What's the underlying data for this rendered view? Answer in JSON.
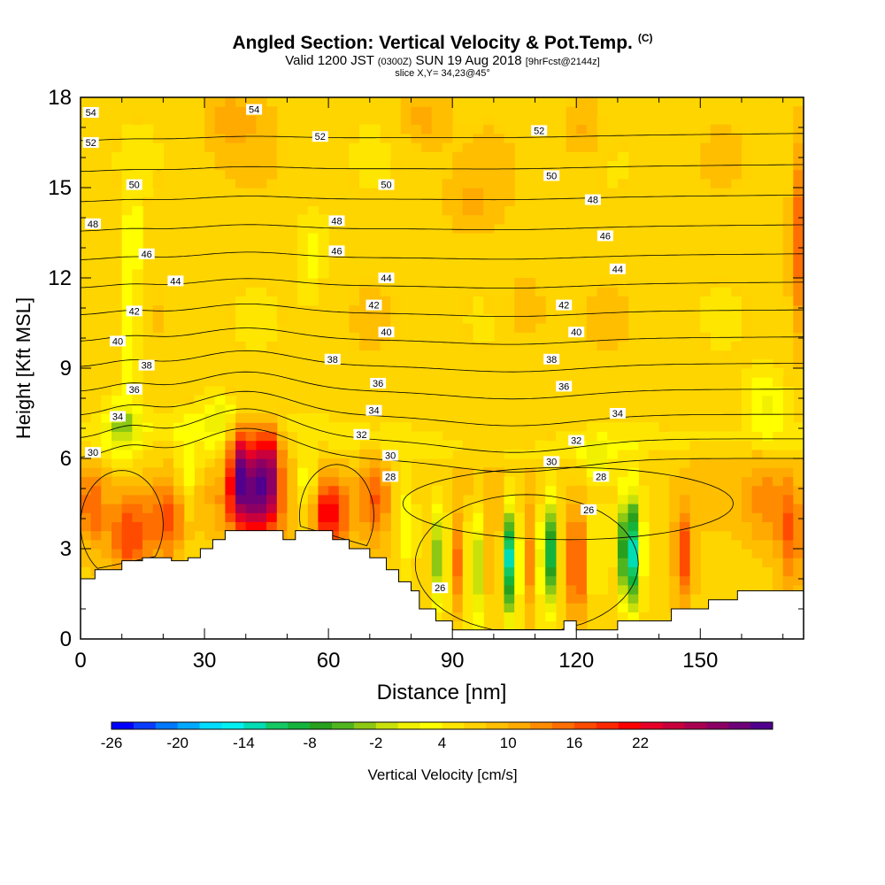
{
  "title": {
    "main": "Angled Section: Vertical Velocity & Pot.Temp.",
    "mark": "(C)",
    "valid_prefix": "Valid 1200 JST",
    "valid_utc": "(0300Z)",
    "valid_date": "SUN 19 Aug 2018",
    "forecast": "[9hrFcst@2144z]",
    "slice": "slice X,Y= 34,23@45°"
  },
  "chart_data": {
    "type": "heatmap",
    "xlabel": "Distance [nm]",
    "ylabel": "Height [Kft MSL]",
    "xlim": [
      0,
      175
    ],
    "ylim": [
      0,
      18
    ],
    "x_ticks": [
      0,
      30,
      60,
      90,
      120,
      150
    ],
    "y_ticks": [
      0,
      3,
      6,
      9,
      12,
      15,
      18
    ],
    "terrain": [
      [
        0,
        2.0
      ],
      [
        3.5,
        2.0
      ],
      [
        3.5,
        2.3
      ],
      [
        10,
        2.3
      ],
      [
        10,
        2.6
      ],
      [
        15,
        2.6
      ],
      [
        15,
        2.7
      ],
      [
        22,
        2.7
      ],
      [
        22,
        2.6
      ],
      [
        26,
        2.6
      ],
      [
        26,
        2.7
      ],
      [
        29,
        2.7
      ],
      [
        29,
        3.0
      ],
      [
        32,
        3.0
      ],
      [
        32,
        3.3
      ],
      [
        35,
        3.3
      ],
      [
        35,
        3.6
      ],
      [
        49,
        3.6
      ],
      [
        49,
        3.3
      ],
      [
        52,
        3.3
      ],
      [
        52,
        3.6
      ],
      [
        61,
        3.6
      ],
      [
        61,
        3.3
      ],
      [
        65,
        3.3
      ],
      [
        65,
        3.0
      ],
      [
        70,
        3.0
      ],
      [
        70,
        2.7
      ],
      [
        74,
        2.7
      ],
      [
        74,
        2.3
      ],
      [
        77,
        2.3
      ],
      [
        77,
        1.9
      ],
      [
        80,
        1.9
      ],
      [
        80,
        1.6
      ],
      [
        82,
        1.6
      ],
      [
        82,
        1.0
      ],
      [
        86,
        1.0
      ],
      [
        86,
        0.6
      ],
      [
        90,
        0.6
      ],
      [
        90,
        0.3
      ],
      [
        117,
        0.3
      ],
      [
        117,
        0.6
      ],
      [
        120,
        0.6
      ],
      [
        120,
        0.3
      ],
      [
        130,
        0.3
      ],
      [
        130,
        0.6
      ],
      [
        143,
        0.6
      ],
      [
        143,
        1.0
      ],
      [
        152,
        1.0
      ],
      [
        152,
        1.3
      ],
      [
        159,
        1.3
      ],
      [
        159,
        1.6
      ],
      [
        175,
        1.6
      ]
    ],
    "velocity_cells": [
      {
        "x": 39,
        "z": 5.6,
        "sx": 3.0,
        "sz": 1.3,
        "w": 22
      },
      {
        "x": 45,
        "z": 5.6,
        "sx": 3.0,
        "sz": 1.3,
        "w": 22
      },
      {
        "x": 42,
        "z": 4.2,
        "sx": 6.0,
        "sz": 1.0,
        "w": 12
      },
      {
        "x": 60,
        "z": 4.1,
        "sx": 4.5,
        "sz": 1.2,
        "w": 14
      },
      {
        "x": 55,
        "z": 5.0,
        "sx": 3.0,
        "sz": 1.3,
        "w": -8
      },
      {
        "x": 12,
        "z": 3.4,
        "sx": 5.0,
        "sz": 1.3,
        "w": 11
      },
      {
        "x": 21,
        "z": 3.9,
        "sx": 4.0,
        "sz": 1.3,
        "w": 9
      },
      {
        "x": 3,
        "z": 4.3,
        "sx": 3.0,
        "sz": 1.4,
        "w": 7
      },
      {
        "x": 10,
        "z": 7.0,
        "sx": 4.0,
        "sz": 1.0,
        "w": -7
      },
      {
        "x": 26,
        "z": 5.6,
        "sx": 2.5,
        "sz": 1.6,
        "w": -6
      },
      {
        "x": 33,
        "z": 7.0,
        "sx": 4.0,
        "sz": 1.0,
        "w": -6
      },
      {
        "x": 71,
        "z": 4.6,
        "sx": 3.5,
        "sz": 1.6,
        "w": 8
      },
      {
        "x": 79,
        "z": 3.7,
        "sx": 2.2,
        "sz": 1.6,
        "w": -5
      },
      {
        "x": 87,
        "z": 2.8,
        "sx": 1.8,
        "sz": 1.8,
        "w": -12
      },
      {
        "x": 91,
        "z": 2.4,
        "sx": 2.0,
        "sz": 1.6,
        "w": 8
      },
      {
        "x": 96,
        "z": 2.6,
        "sx": 2.5,
        "sz": 1.8,
        "w": -9
      },
      {
        "x": 99.5,
        "z": 2.5,
        "sx": 1.8,
        "sz": 1.8,
        "w": 6
      },
      {
        "x": 104,
        "z": 2.7,
        "sx": 1.8,
        "sz": 1.8,
        "w": -20
      },
      {
        "x": 109,
        "z": 2.5,
        "sx": 1.6,
        "sz": 1.8,
        "w": 6
      },
      {
        "x": 113,
        "z": 2.8,
        "sx": 1.6,
        "sz": 1.8,
        "w": -20
      },
      {
        "x": 120,
        "z": 2.6,
        "sx": 1.6,
        "sz": 1.8,
        "w": 16
      },
      {
        "x": 125,
        "z": 2.5,
        "sx": 1.6,
        "sz": 1.6,
        "w": -5
      },
      {
        "x": 133,
        "z": 2.9,
        "sx": 2.5,
        "sz": 1.9,
        "w": -22
      },
      {
        "x": 146,
        "z": 2.7,
        "sx": 2.2,
        "sz": 1.6,
        "w": 11
      },
      {
        "x": 172,
        "z": 3.5,
        "sx": 3.0,
        "sz": 1.8,
        "w": 9
      },
      {
        "x": 166,
        "z": 4.5,
        "sx": 5.0,
        "sz": 1.5,
        "w": 5
      },
      {
        "x": 12,
        "z": 10.5,
        "sx": 2.5,
        "sz": 3.0,
        "w": -5
      },
      {
        "x": 13,
        "z": 13.5,
        "sx": 2.0,
        "sz": 1.2,
        "w": -4
      },
      {
        "x": 56,
        "z": 12.8,
        "sx": 3.0,
        "sz": 1.5,
        "w": -4
      },
      {
        "x": 166,
        "z": 7.8,
        "sx": 5.0,
        "sz": 1.0,
        "w": -6
      },
      {
        "x": 125,
        "z": 6.0,
        "sx": 3.0,
        "sz": 0.6,
        "w": -5
      },
      {
        "x": 174,
        "z": 13.5,
        "sx": 2.0,
        "sz": 3.0,
        "w": 9
      },
      {
        "x": 37,
        "z": 17.2,
        "sx": 6.0,
        "sz": 1.0,
        "w": 4
      },
      {
        "x": 83,
        "z": 17.3,
        "sx": 5.0,
        "sz": 1.0,
        "w": 4
      },
      {
        "x": 122,
        "z": 17.0,
        "sx": 5.0,
        "sz": 1.0,
        "w": 4
      },
      {
        "x": 107,
        "z": 11.0,
        "sx": 5.0,
        "sz": 1.2,
        "w": 3
      },
      {
        "x": 95,
        "z": 14.5,
        "sx": 6.0,
        "sz": 1.0,
        "w": 3
      }
    ],
    "theta_levels": [
      30,
      32,
      34,
      36,
      38,
      40,
      42,
      44,
      46,
      48,
      50,
      52,
      54
    ],
    "theta_labels": [
      {
        "text": "54",
        "x": 2.5,
        "z": 17.5
      },
      {
        "text": "54",
        "x": 42,
        "z": 17.6
      },
      {
        "text": "52",
        "x": 2.5,
        "z": 16.5
      },
      {
        "text": "52",
        "x": 58,
        "z": 16.7
      },
      {
        "text": "52",
        "x": 111,
        "z": 16.9
      },
      {
        "text": "50",
        "x": 13,
        "z": 15.1
      },
      {
        "text": "50",
        "x": 74,
        "z": 15.1
      },
      {
        "text": "50",
        "x": 114,
        "z": 15.4
      },
      {
        "text": "48",
        "x": 3,
        "z": 13.8
      },
      {
        "text": "48",
        "x": 62,
        "z": 13.9
      },
      {
        "text": "48",
        "x": 124,
        "z": 14.6
      },
      {
        "text": "46",
        "x": 16,
        "z": 12.8
      },
      {
        "text": "46",
        "x": 62,
        "z": 12.9
      },
      {
        "text": "46",
        "x": 127,
        "z": 13.4
      },
      {
        "text": "44",
        "x": 23,
        "z": 11.9
      },
      {
        "text": "44",
        "x": 74,
        "z": 12.0
      },
      {
        "text": "44",
        "x": 130,
        "z": 12.3
      },
      {
        "text": "42",
        "x": 13,
        "z": 10.9
      },
      {
        "text": "42",
        "x": 71,
        "z": 11.1
      },
      {
        "text": "42",
        "x": 117,
        "z": 11.1
      },
      {
        "text": "40",
        "x": 9,
        "z": 9.9
      },
      {
        "text": "40",
        "x": 74,
        "z": 10.2
      },
      {
        "text": "40",
        "x": 120,
        "z": 10.2
      },
      {
        "text": "38",
        "x": 16,
        "z": 9.1
      },
      {
        "text": "38",
        "x": 61,
        "z": 9.3
      },
      {
        "text": "38",
        "x": 114,
        "z": 9.3
      },
      {
        "text": "36",
        "x": 13,
        "z": 8.3
      },
      {
        "text": "36",
        "x": 72,
        "z": 8.5
      },
      {
        "text": "36",
        "x": 117,
        "z": 8.4
      },
      {
        "text": "34",
        "x": 9,
        "z": 7.4
      },
      {
        "text": "34",
        "x": 71,
        "z": 7.6
      },
      {
        "text": "34",
        "x": 130,
        "z": 7.5
      },
      {
        "text": "32",
        "x": 68,
        "z": 6.8
      },
      {
        "text": "32",
        "x": 120,
        "z": 6.6
      },
      {
        "text": "30",
        "x": 3,
        "z": 6.2
      },
      {
        "text": "30",
        "x": 75,
        "z": 6.1
      },
      {
        "text": "30",
        "x": 114,
        "z": 5.9
      },
      {
        "text": "28",
        "x": 75,
        "z": 5.4
      },
      {
        "text": "28",
        "x": 126,
        "z": 5.4
      },
      {
        "text": "26",
        "x": 123,
        "z": 4.3
      },
      {
        "text": "26",
        "x": 87,
        "z": 1.7
      }
    ]
  },
  "colorbar": {
    "label": "Vertical Velocity [cm/s]",
    "tick_labels": [
      "-26",
      "-20",
      "-14",
      "-8",
      "-2",
      "4",
      "10",
      "16",
      "22"
    ],
    "colors": [
      "#0000ff",
      "#0a3cff",
      "#0078ff",
      "#00a8ff",
      "#00dcff",
      "#00f0f0",
      "#00dcb4",
      "#14c864",
      "#14b43c",
      "#28a01e",
      "#50b41e",
      "#8cc814",
      "#c8e10a",
      "#f0f000",
      "#ffff00",
      "#ffe600",
      "#ffd200",
      "#ffbe00",
      "#ffaa00",
      "#ff8c00",
      "#ff6e00",
      "#ff4b00",
      "#ff2800",
      "#ff0000",
      "#e60028",
      "#c8003c",
      "#aa0050",
      "#8c0064",
      "#6e0078",
      "#50008c"
    ]
  }
}
